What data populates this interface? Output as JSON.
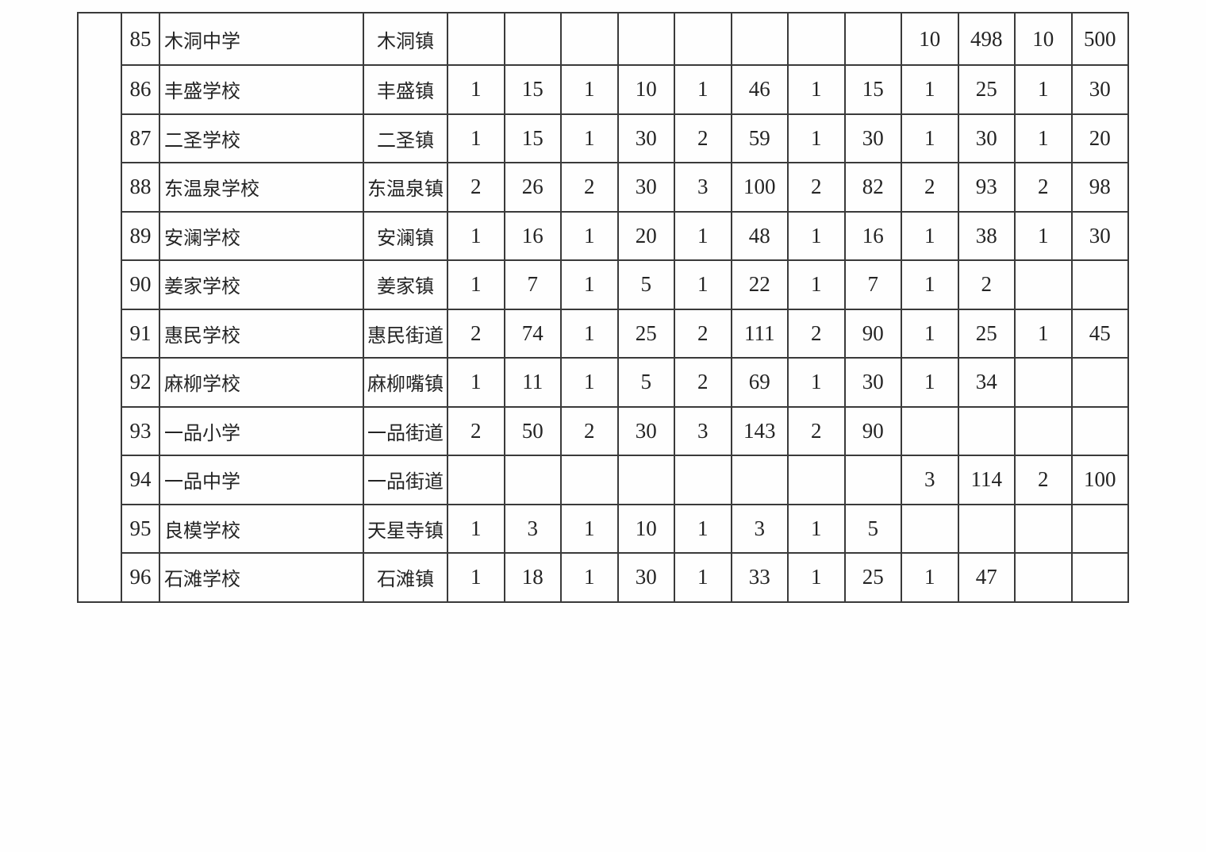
{
  "colors": {
    "border": "#3a3a3a",
    "text": "#242424",
    "background": "#fefefe"
  },
  "table": {
    "description_note": "",
    "rows": [
      {
        "no": "85",
        "school": "木洞中学",
        "town": "木洞镇",
        "values": [
          "",
          "",
          "",
          "",
          "",
          "",
          "",
          "",
          "10",
          "498",
          "10",
          "500"
        ]
      },
      {
        "no": "86",
        "school": "丰盛学校",
        "town": "丰盛镇",
        "values": [
          "1",
          "15",
          "1",
          "10",
          "1",
          "46",
          "1",
          "15",
          "1",
          "25",
          "1",
          "30"
        ]
      },
      {
        "no": "87",
        "school": "二圣学校",
        "town": "二圣镇",
        "values": [
          "1",
          "15",
          "1",
          "30",
          "2",
          "59",
          "1",
          "30",
          "1",
          "30",
          "1",
          "20"
        ]
      },
      {
        "no": "88",
        "school": "东温泉学校",
        "town": "东温泉镇",
        "values": [
          "2",
          "26",
          "2",
          "30",
          "3",
          "100",
          "2",
          "82",
          "2",
          "93",
          "2",
          "98"
        ]
      },
      {
        "no": "89",
        "school": "安澜学校",
        "town": "安澜镇",
        "values": [
          "1",
          "16",
          "1",
          "20",
          "1",
          "48",
          "1",
          "16",
          "1",
          "38",
          "1",
          "30"
        ]
      },
      {
        "no": "90",
        "school": "姜家学校",
        "town": "姜家镇",
        "values": [
          "1",
          "7",
          "1",
          "5",
          "1",
          "22",
          "1",
          "7",
          "1",
          "2",
          "",
          ""
        ]
      },
      {
        "no": "91",
        "school": "惠民学校",
        "town": "惠民街道",
        "values": [
          "2",
          "74",
          "1",
          "25",
          "2",
          "111",
          "2",
          "90",
          "1",
          "25",
          "1",
          "45"
        ]
      },
      {
        "no": "92",
        "school": "麻柳学校",
        "town": "麻柳嘴镇",
        "values": [
          "1",
          "11",
          "1",
          "5",
          "2",
          "69",
          "1",
          "30",
          "1",
          "34",
          "",
          ""
        ]
      },
      {
        "no": "93",
        "school": "一品小学",
        "town": "一品街道",
        "values": [
          "2",
          "50",
          "2",
          "30",
          "3",
          "143",
          "2",
          "90",
          "",
          "",
          "",
          ""
        ]
      },
      {
        "no": "94",
        "school": "一品中学",
        "town": "一品街道",
        "values": [
          "",
          "",
          "",
          "",
          "",
          "",
          "",
          "",
          "3",
          "114",
          "2",
          "100"
        ]
      },
      {
        "no": "95",
        "school": "良模学校",
        "town": "天星寺镇",
        "values": [
          "1",
          "3",
          "1",
          "10",
          "1",
          "3",
          "1",
          "5",
          "",
          "",
          "",
          ""
        ]
      },
      {
        "no": "96",
        "school": "石滩学校",
        "town": "石滩镇",
        "values": [
          "1",
          "18",
          "1",
          "30",
          "1",
          "33",
          "1",
          "25",
          "1",
          "47",
          "",
          ""
        ]
      }
    ]
  }
}
